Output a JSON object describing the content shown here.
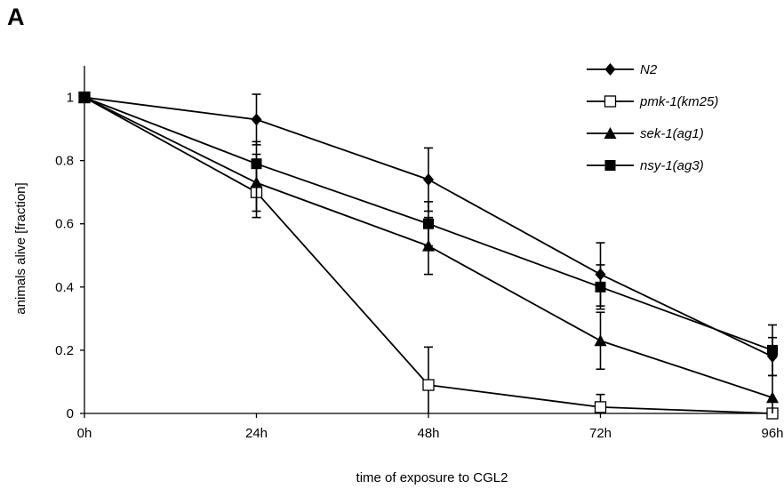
{
  "panel_label": "A",
  "chart_data": {
    "type": "line",
    "title": "",
    "xlabel": "time of exposure to CGL2",
    "ylabel": "animals alive [fraction]",
    "categories": [
      "0h",
      "24h",
      "48h",
      "72h",
      "96h"
    ],
    "ylim": [
      0,
      1.1
    ],
    "yticks": [
      0,
      0.2,
      0.4,
      0.6,
      0.8,
      1
    ],
    "ytick_labels": [
      "0",
      "0.2",
      "0.4",
      "0.6",
      "0.8",
      "1"
    ],
    "grid": false,
    "legend_position": "top-right",
    "series": [
      {
        "name": "N2",
        "marker": "diamond-filled",
        "color": "#000000",
        "values": [
          1,
          0.93,
          0.74,
          0.44,
          0.18
        ],
        "errors": [
          0,
          0.08,
          0.1,
          0.1,
          0.06
        ]
      },
      {
        "name": "pmk-1(km25)",
        "marker": "square-open",
        "color": "#000000",
        "values": [
          1,
          0.7,
          0.09,
          0.02,
          0.0
        ],
        "errors": [
          0,
          0.08,
          0.12,
          0.04,
          0.0
        ]
      },
      {
        "name": "sek-1(ag1)",
        "marker": "triangle-filled",
        "color": "#000000",
        "values": [
          1,
          0.73,
          0.53,
          0.23,
          0.05
        ],
        "errors": [
          0,
          0.09,
          0.09,
          0.09,
          0.07
        ]
      },
      {
        "name": "nsy-1(ag3)",
        "marker": "square-filled",
        "color": "#000000",
        "values": [
          1,
          0.79,
          0.6,
          0.4,
          0.2
        ],
        "errors": [
          0,
          0.07,
          0.07,
          0.07,
          0.08
        ]
      }
    ]
  }
}
